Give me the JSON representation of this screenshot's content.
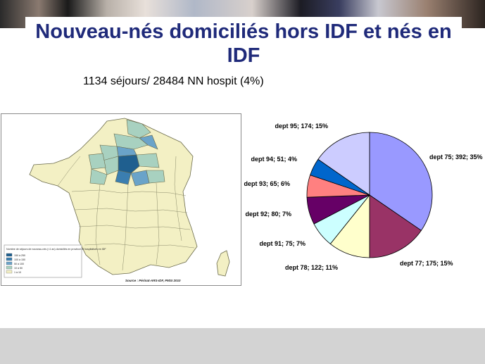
{
  "slide": {
    "title": "Nouveau-nés domiciliés hors IDF et nés en IDF",
    "subtitle": "1134 séjours/ 28484 NN hospit (4%)"
  },
  "map": {
    "legend_title": "Nombre de séjours de nouveau-nés (<1 an) domiciliés en province et hospitalisés en IDF",
    "legend": [
      {
        "label": "150 à 250",
        "color": "#1f5f8f"
      },
      {
        "label": "100 à 150",
        "color": "#3b7eb0"
      },
      {
        "label": "50 à 100",
        "color": "#6aa3c9"
      },
      {
        "label": "10 à 50",
        "color": "#a8d1c0"
      },
      {
        "label": "1 à 10",
        "color": "#f3f0c4"
      }
    ],
    "source": "Source : Périnat-ARS-IDF, PMSI 2010"
  },
  "chart_data": {
    "type": "pie",
    "slices": [
      {
        "label": "dept 75; 392; 35%",
        "name": "dept 75",
        "value": 392,
        "percent": 35,
        "color": "#9999ff"
      },
      {
        "label": "dept 77; 175; 15%",
        "name": "dept 77",
        "value": 175,
        "percent": 15,
        "color": "#993366"
      },
      {
        "label": "dept 78; 122; 11%",
        "name": "dept 78",
        "value": 122,
        "percent": 11,
        "color": "#ffffcc"
      },
      {
        "label": "dept 91; 75; 7%",
        "name": "dept 91",
        "value": 75,
        "percent": 7,
        "color": "#ccffff"
      },
      {
        "label": "dept 92; 80; 7%",
        "name": "dept 92",
        "value": 80,
        "percent": 7,
        "color": "#660066"
      },
      {
        "label": "dept 93; 65; 6%",
        "name": "dept 93",
        "value": 65,
        "percent": 6,
        "color": "#ff8080"
      },
      {
        "label": "dept 94; 51; 4%",
        "name": "dept 94",
        "value": 51,
        "percent": 4,
        "color": "#0066cc"
      },
      {
        "label": "dept 95; 174; 15%",
        "name": "dept 95",
        "value": 174,
        "percent": 15,
        "color": "#ccccff"
      }
    ]
  }
}
